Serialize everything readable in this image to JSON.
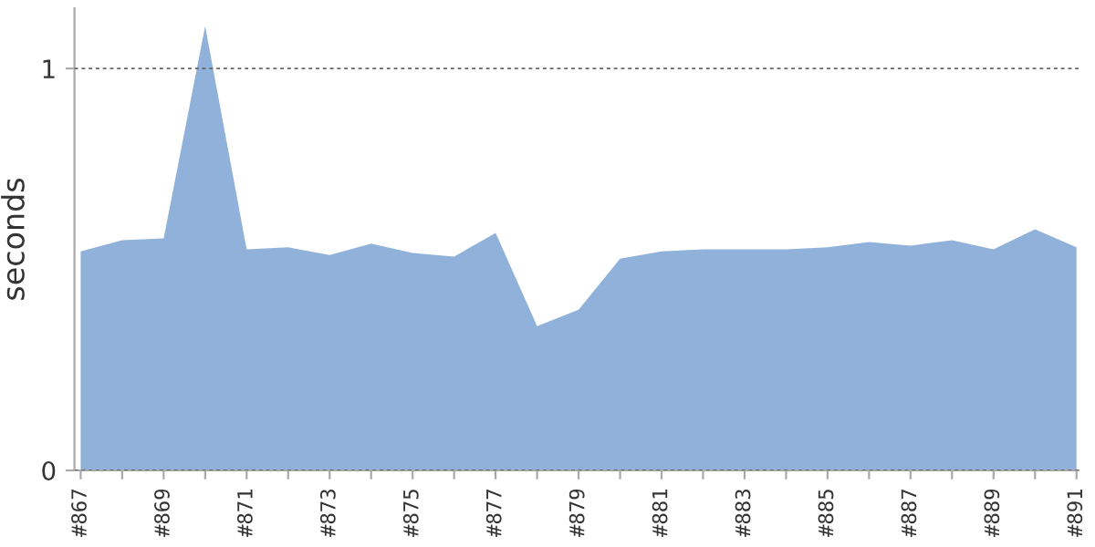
{
  "chart_data": {
    "type": "area",
    "ylabel": "seconds",
    "categories": [
      "#867",
      null,
      "#869",
      null,
      "#871",
      null,
      "#873",
      null,
      "#875",
      null,
      "#877",
      null,
      "#879",
      null,
      "#881",
      null,
      "#883",
      null,
      "#885",
      null,
      "#887",
      null,
      "#889",
      null,
      "#891"
    ],
    "series": [
      {
        "color": "#8fb1da",
        "values": [
          0.545,
          0.573,
          0.577,
          1.105,
          0.55,
          0.555,
          0.536,
          0.564,
          0.541,
          0.532,
          0.591,
          0.359,
          0.4,
          0.527,
          0.545,
          0.55,
          0.55,
          0.55,
          0.555,
          0.568,
          0.559,
          0.573,
          0.55,
          0.6,
          0.555
        ]
      }
    ],
    "ylim": [
      0,
      1.15
    ],
    "yticks": [
      0,
      1
    ],
    "grid": "y",
    "legend": false
  }
}
